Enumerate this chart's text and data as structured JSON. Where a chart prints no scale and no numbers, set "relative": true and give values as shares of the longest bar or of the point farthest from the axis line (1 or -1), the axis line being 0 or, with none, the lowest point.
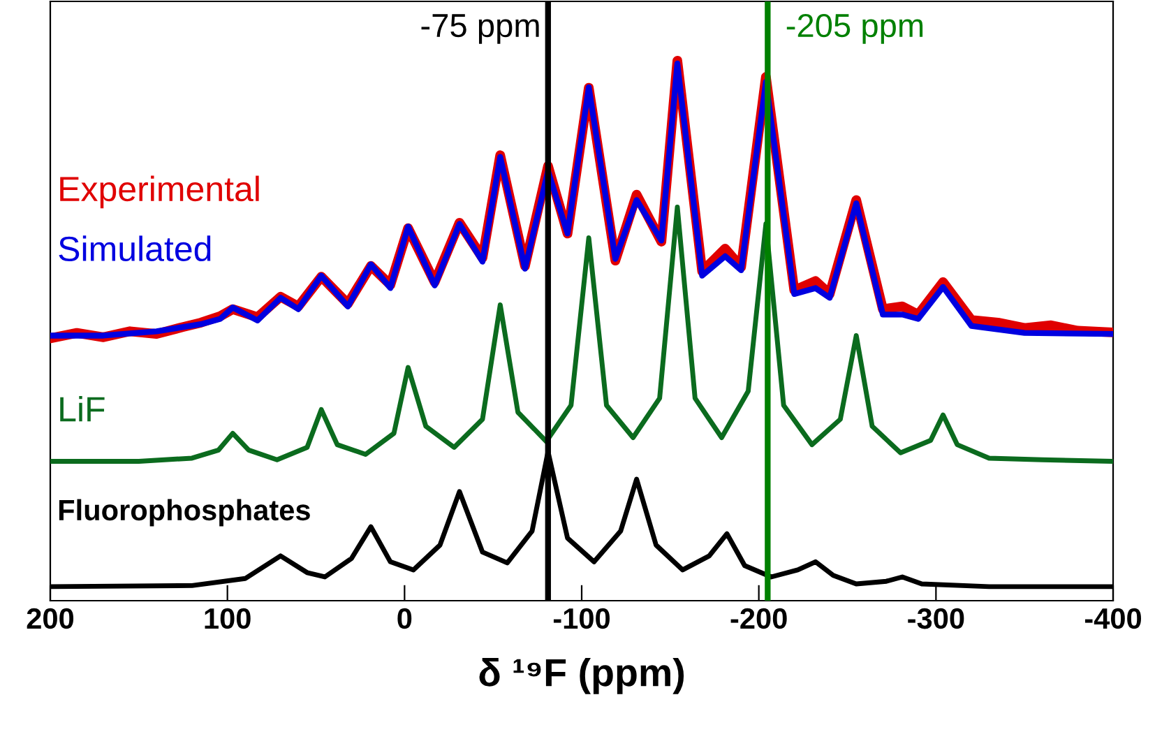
{
  "chart_data": {
    "type": "line",
    "relative": true,
    "xlabel": "δ ¹⁹F (ppm)",
    "xlim": [
      200,
      -400
    ],
    "xticks": [
      200,
      100,
      0,
      -100,
      -200,
      -300,
      -400
    ],
    "legend": false,
    "grid": false,
    "marker": "none",
    "line_style": "solid",
    "series": [
      {
        "name": "Experimental",
        "color": "#e00000",
        "x": [
          200,
          185,
          170,
          155,
          140,
          125,
          115,
          104,
          97,
          83,
          70,
          60,
          47,
          32,
          19,
          8,
          -2,
          -17,
          -31,
          -44,
          -54,
          -68,
          -81,
          -92,
          -104,
          -119,
          -131,
          -145,
          -154,
          -168,
          -181,
          -190,
          -204,
          -220,
          -232,
          -240,
          -255,
          -270,
          -281,
          -290,
          -304,
          -320,
          -335,
          -350,
          -365,
          -380,
          -400
        ],
        "values": [
          0.486,
          0.496,
          0.488,
          0.499,
          0.494,
          0.507,
          0.515,
          0.527,
          0.54,
          0.525,
          0.563,
          0.545,
          0.6,
          0.55,
          0.62,
          0.585,
          0.69,
          0.59,
          0.7,
          0.635,
          0.825,
          0.62,
          0.805,
          0.68,
          0.95,
          0.63,
          0.752,
          0.665,
          1.0,
          0.61,
          0.652,
          0.618,
          0.97,
          0.575,
          0.592,
          0.568,
          0.742,
          0.54,
          0.545,
          0.53,
          0.59,
          0.52,
          0.515,
          0.505,
          0.51,
          0.5,
          0.497
        ]
      },
      {
        "name": "Simulated",
        "color": "#0000e0",
        "x": [
          200,
          170,
          140,
          115,
          104,
          97,
          83,
          70,
          60,
          47,
          32,
          19,
          8,
          -2,
          -17,
          -31,
          -44,
          -54,
          -68,
          -81,
          -92,
          -104,
          -119,
          -131,
          -145,
          -154,
          -168,
          -181,
          -190,
          -204,
          -220,
          -232,
          -240,
          -255,
          -270,
          -281,
          -290,
          -304,
          -320,
          -350,
          -400
        ],
        "values": [
          0.491,
          0.491,
          0.499,
          0.512,
          0.522,
          0.543,
          0.519,
          0.561,
          0.54,
          0.602,
          0.545,
          0.623,
          0.579,
          0.693,
          0.584,
          0.698,
          0.628,
          0.822,
          0.615,
          0.796,
          0.68,
          0.951,
          0.633,
          0.742,
          0.667,
          0.995,
          0.602,
          0.638,
          0.612,
          0.961,
          0.568,
          0.579,
          0.561,
          0.736,
          0.53,
          0.53,
          0.522,
          0.581,
          0.509,
          0.496,
          0.494
        ]
      },
      {
        "name": "LiF",
        "color": "#0b6b1e",
        "x": [
          200,
          150,
          120,
          105,
          97,
          88,
          72,
          55,
          47,
          38,
          22,
          6,
          -2,
          -12,
          -28,
          -44,
          -54,
          -64,
          -80,
          -94,
          -104,
          -114,
          -129,
          -144,
          -154,
          -164,
          -179,
          -194,
          -204,
          -214,
          -230,
          -246,
          -255,
          -264,
          -280,
          -297,
          -304,
          -312,
          -330,
          -360,
          -400
        ],
        "values": [
          0.258,
          0.258,
          0.264,
          0.279,
          0.31,
          0.279,
          0.261,
          0.284,
          0.354,
          0.289,
          0.271,
          0.31,
          0.432,
          0.323,
          0.284,
          0.336,
          0.548,
          0.349,
          0.295,
          0.362,
          0.672,
          0.362,
          0.302,
          0.375,
          0.729,
          0.375,
          0.302,
          0.388,
          0.698,
          0.362,
          0.289,
          0.336,
          0.491,
          0.323,
          0.274,
          0.297,
          0.344,
          0.289,
          0.264,
          0.261,
          0.258
        ]
      },
      {
        "name": "Fluorophosphates",
        "color": "#000000",
        "x": [
          200,
          120,
          90,
          70,
          55,
          45,
          30,
          19,
          8,
          -5,
          -20,
          -31,
          -44,
          -58,
          -72,
          -81,
          -92,
          -107,
          -122,
          -131,
          -142,
          -157,
          -172,
          -182,
          -192,
          -207,
          -222,
          -232,
          -242,
          -255,
          -272,
          -281,
          -292,
          -330,
          -400
        ],
        "values": [
          0.026,
          0.028,
          0.041,
          0.083,
          0.052,
          0.044,
          0.078,
          0.137,
          0.072,
          0.057,
          0.103,
          0.202,
          0.09,
          0.07,
          0.129,
          0.276,
          0.116,
          0.072,
          0.129,
          0.225,
          0.103,
          0.057,
          0.083,
          0.124,
          0.065,
          0.044,
          0.057,
          0.072,
          0.047,
          0.031,
          0.036,
          0.044,
          0.031,
          0.026,
          0.026
        ]
      }
    ],
    "ref_lines": [
      {
        "axis": "x",
        "value": -81,
        "label": "-75 ppm",
        "color": "#000000",
        "line_style": "solid"
      },
      {
        "axis": "x",
        "value": -205,
        "label": "-205 ppm",
        "color": "#008000",
        "line_style": "solid"
      }
    ]
  }
}
